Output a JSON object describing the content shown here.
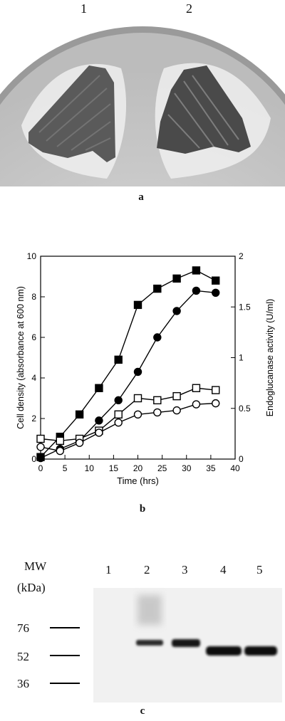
{
  "panel_a": {
    "plate_numbers": [
      "1",
      "2"
    ],
    "label": "a"
  },
  "panel_b": {
    "label": "b",
    "chart_data": {
      "type": "line",
      "xlabel": "Time (hrs)",
      "ylabel_left": "Cell density (absorbance at 600 nm)",
      "ylabel_right": "Endoglucanase activity (U/ml)",
      "xlim": [
        0,
        40
      ],
      "ylim_left": [
        0,
        10
      ],
      "ylim_right": [
        0,
        2
      ],
      "x_ticks": [
        "0",
        "5",
        "10",
        "15",
        "20",
        "25",
        "30",
        "35",
        "40"
      ],
      "y_ticks_left": [
        "0",
        "2",
        "4",
        "6",
        "8",
        "10"
      ],
      "y_ticks_right": [
        "0",
        "0.5",
        "1",
        "1.5",
        "2"
      ],
      "x": [
        0,
        4,
        8,
        12,
        16,
        20,
        24,
        28,
        32,
        36
      ],
      "series": [
        {
          "marker": "filled-square",
          "values": [
            0.1,
            1.1,
            2.2,
            3.5,
            4.9,
            7.6,
            8.4,
            8.9,
            9.3,
            8.8
          ]
        },
        {
          "marker": "filled-circle",
          "values": [
            0.05,
            0.5,
            0.9,
            1.9,
            2.9,
            4.3,
            6.0,
            7.3,
            8.3,
            8.2
          ]
        },
        {
          "marker": "open-square",
          "values": [
            1.0,
            0.9,
            1.0,
            1.4,
            2.2,
            3.0,
            2.9,
            3.1,
            3.5,
            3.4
          ]
        },
        {
          "marker": "open-circle",
          "values": [
            0.6,
            0.4,
            0.8,
            1.3,
            1.8,
            2.2,
            2.3,
            2.4,
            2.7,
            2.75
          ]
        }
      ]
    }
  },
  "panel_c": {
    "label": "c",
    "mw_label": "MW",
    "unit_label": "(kDa)",
    "lane_labels": [
      "1",
      "2",
      "3",
      "4",
      "5"
    ],
    "markers": [
      "76",
      "52",
      "36"
    ]
  }
}
